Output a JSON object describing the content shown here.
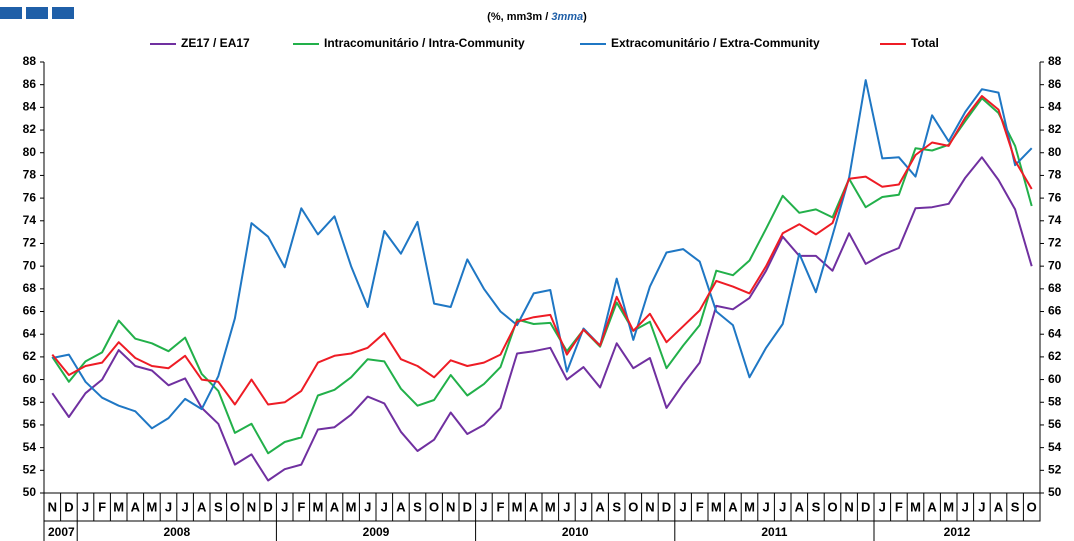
{
  "chart_data": {
    "type": "line",
    "subtitle": [
      "(%, mm3m / ",
      "3mma",
      ")"
    ],
    "categories": [
      "N",
      "D",
      "J",
      "F",
      "M",
      "A",
      "M",
      "J",
      "J",
      "A",
      "S",
      "O",
      "N",
      "D",
      "J",
      "F",
      "M",
      "A",
      "M",
      "J",
      "J",
      "A",
      "S",
      "O",
      "N",
      "D",
      "J",
      "F",
      "M",
      "A",
      "M",
      "J",
      "J",
      "A",
      "S",
      "O",
      "N",
      "D",
      "J",
      "F",
      "M",
      "A",
      "M",
      "J",
      "J",
      "A",
      "S",
      "O",
      "N",
      "D",
      "J",
      "F",
      "M",
      "A",
      "M",
      "J",
      "J",
      "A",
      "S",
      "O"
    ],
    "year_labels": [
      "2007",
      "2008",
      "2009",
      "2010",
      "2011",
      "2012"
    ],
    "ylim": [
      50,
      88
    ],
    "yticks": [
      50,
      52,
      54,
      56,
      58,
      60,
      62,
      64,
      66,
      68,
      70,
      72,
      74,
      76,
      78,
      80,
      82,
      84,
      86,
      88
    ],
    "series": [
      {
        "name": "ZE17 / EA17",
        "color": "#7030a0",
        "values": [
          58.8,
          56.7,
          58.8,
          60.0,
          62.6,
          61.2,
          60.8,
          59.5,
          60.1,
          57.5,
          56.1,
          52.5,
          53.4,
          51.1,
          52.1,
          52.5,
          55.6,
          55.8,
          56.9,
          58.5,
          57.9,
          55.4,
          53.7,
          54.7,
          57.1,
          55.2,
          56.0,
          57.5,
          62.3,
          62.5,
          62.8,
          60.0,
          61.1,
          59.3,
          63.2,
          61.0,
          61.9,
          57.5,
          59.6,
          61.5,
          66.5,
          66.2,
          67.2,
          69.6,
          72.6,
          70.9,
          70.9,
          69.6,
          72.9,
          70.2,
          71.0,
          71.6,
          75.1,
          75.2,
          75.5,
          77.8,
          79.6,
          77.6,
          75.0,
          70.0
        ]
      },
      {
        "name": "Intracomunitário / Intra-Community",
        "color": "#22b04a",
        "values": [
          62.0,
          59.8,
          61.6,
          62.4,
          65.2,
          63.6,
          63.2,
          62.5,
          63.7,
          60.5,
          59.0,
          55.3,
          56.1,
          53.5,
          54.5,
          54.9,
          58.6,
          59.1,
          60.2,
          61.8,
          61.6,
          59.2,
          57.7,
          58.2,
          60.4,
          58.6,
          59.6,
          61.1,
          65.3,
          64.9,
          65.0,
          62.5,
          64.4,
          62.9,
          66.8,
          64.3,
          65.1,
          61.0,
          63.0,
          64.8,
          69.6,
          69.2,
          70.5,
          73.3,
          76.2,
          74.7,
          75.0,
          74.3,
          77.7,
          75.2,
          76.1,
          76.3,
          80.4,
          80.2,
          80.7,
          82.8,
          84.8,
          83.5,
          80.6,
          75.3
        ]
      },
      {
        "name": "Extracomunitário / Extra-Community",
        "color": "#1f77c4",
        "values": [
          61.9,
          62.2,
          59.8,
          58.4,
          57.7,
          57.2,
          55.7,
          56.6,
          58.3,
          57.4,
          60.3,
          65.4,
          73.8,
          72.6,
          69.9,
          75.1,
          72.8,
          74.4,
          70.0,
          66.4,
          73.1,
          71.1,
          73.9,
          66.7,
          66.4,
          70.6,
          68.0,
          66.0,
          64.8,
          67.6,
          67.9,
          60.7,
          64.5,
          63.0,
          68.9,
          63.5,
          68.2,
          71.2,
          71.5,
          70.4,
          66.0,
          64.8,
          60.2,
          62.8,
          64.9,
          71.1,
          67.7,
          72.7,
          77.8,
          86.4,
          79.5,
          79.6,
          77.9,
          83.3,
          81.0,
          83.6,
          85.6,
          85.3,
          78.9,
          80.4
        ]
      },
      {
        "name": "Total",
        "color": "#ee1c25",
        "values": [
          62.2,
          60.4,
          61.2,
          61.5,
          63.3,
          61.9,
          61.2,
          61.0,
          62.1,
          60.0,
          59.8,
          57.8,
          60.0,
          57.8,
          58.0,
          59.0,
          61.5,
          62.1,
          62.3,
          62.8,
          64.1,
          61.8,
          61.2,
          60.2,
          61.7,
          61.2,
          61.5,
          62.2,
          65.1,
          65.5,
          65.7,
          62.2,
          64.4,
          63.0,
          67.3,
          64.3,
          65.8,
          63.3,
          64.7,
          66.1,
          68.7,
          68.2,
          67.6,
          70.0,
          72.9,
          73.7,
          72.8,
          73.8,
          77.7,
          77.9,
          77.0,
          77.2,
          79.8,
          80.9,
          80.6,
          83.1,
          85.0,
          83.8,
          79.3,
          76.8
        ]
      }
    ]
  }
}
